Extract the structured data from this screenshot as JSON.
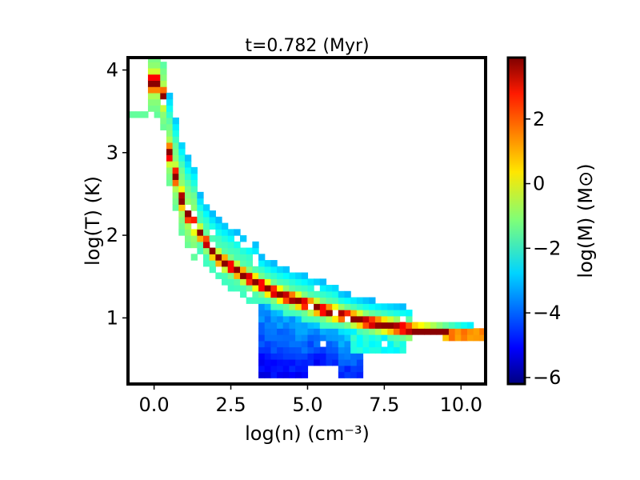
{
  "chart_data": {
    "type": "heatmap",
    "title": "t=0.782 (Myr)",
    "xlabel": "log(n) (cm⁻³)",
    "ylabel": "log(T) (K)",
    "xlim": [
      -0.85,
      10.8
    ],
    "ylim": [
      0.2,
      4.15
    ],
    "xticks": [
      "0.0",
      "2.5",
      "5.0",
      "7.5",
      "10.0"
    ],
    "xtick_values": [
      0,
      2.5,
      5.0,
      7.5,
      10.0
    ],
    "yticks": [
      "1",
      "2",
      "3",
      "4"
    ],
    "ytick_values": [
      1,
      2,
      3,
      4
    ],
    "colorbar": {
      "label": "log(M) (M⊙)",
      "colormap": "jet",
      "range": [
        -6.2,
        3.9
      ],
      "ticks": [
        "−6",
        "−4",
        "−2",
        "0",
        "2"
      ],
      "tick_values": [
        -6,
        -4,
        -2,
        0,
        2
      ]
    },
    "features": [
      {
        "name": "main-ridge",
        "points": [
          [
            0.25,
            3.85
          ],
          [
            0.5,
            3.0
          ],
          [
            1.0,
            2.3
          ],
          [
            2.0,
            1.75
          ],
          [
            3.0,
            1.5
          ],
          [
            4.0,
            1.3
          ],
          [
            5.5,
            1.1
          ],
          [
            7.0,
            0.95
          ],
          [
            8.5,
            0.85
          ],
          [
            10.5,
            0.8
          ]
        ],
        "log_mass": 3.0
      },
      {
        "name": "cold-dense-lobe",
        "log_mass_range": [
          -5.5,
          -3.0
        ],
        "n_range": [
          3.4,
          7.0
        ],
        "T_range": [
          0.25,
          1.2
        ]
      }
    ]
  },
  "colors": {
    "frame": "#000000",
    "background": "#ffffff"
  }
}
